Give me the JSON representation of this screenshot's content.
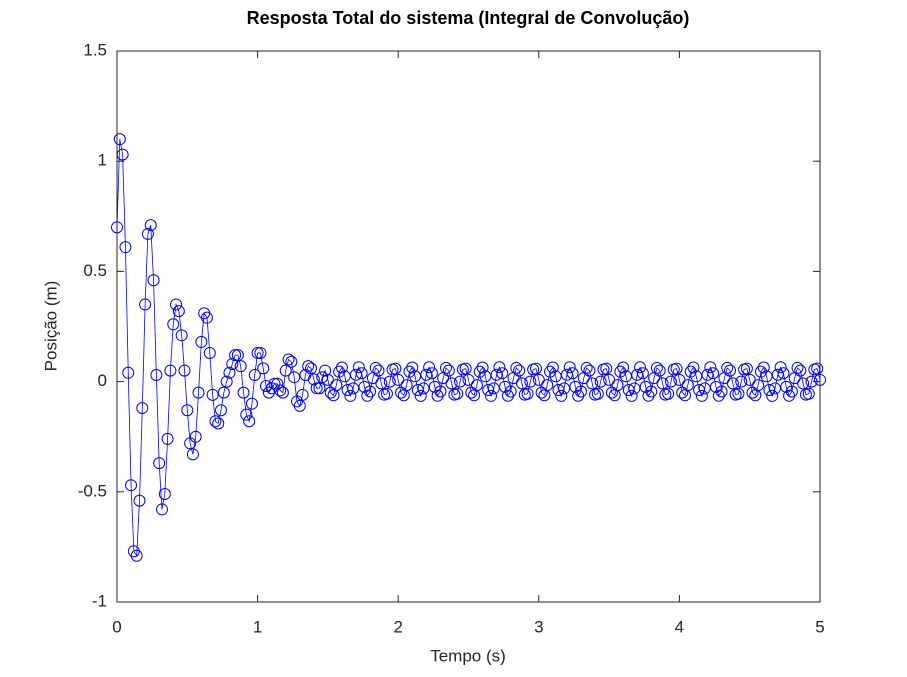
{
  "chart_data": {
    "type": "line",
    "title": "Resposta Total do sistema (Integral de Convolução)",
    "xlabel": "Tempo (s)",
    "ylabel": "Posição (m)",
    "xlim": [
      0,
      5
    ],
    "xticks": [
      0,
      1,
      2,
      3,
      4,
      5
    ],
    "ylim": [
      -1,
      1.5
    ],
    "yticks": [
      -1,
      -0.5,
      0,
      0.5,
      1,
      1.5
    ],
    "grid": false,
    "marker": "circle",
    "x": [
      0,
      0.02,
      0.04,
      0.06,
      0.08,
      0.1,
      0.12,
      0.14,
      0.16,
      0.18,
      0.2,
      0.22,
      0.24,
      0.26,
      0.28,
      0.3,
      0.32,
      0.34,
      0.36,
      0.38,
      0.4,
      0.42,
      0.44,
      0.46,
      0.48,
      0.5,
      0.52,
      0.54,
      0.56,
      0.58,
      0.6,
      0.62,
      0.64,
      0.66,
      0.68,
      0.7,
      0.72,
      0.74,
      0.76,
      0.78,
      0.8,
      0.82,
      0.84,
      0.86,
      0.88,
      0.9,
      0.92,
      0.94,
      0.96,
      0.98,
      1,
      1.02,
      1.04,
      1.06,
      1.08,
      1.1,
      1.12,
      1.14,
      1.16,
      1.18,
      1.2,
      1.22,
      1.24,
      1.26,
      1.28,
      1.3,
      1.32,
      1.34,
      1.36,
      1.38,
      1.4,
      1.42,
      1.44,
      1.46,
      1.48,
      1.5,
      1.52,
      1.54,
      1.56,
      1.58,
      1.6,
      1.62,
      1.64,
      1.66,
      1.68,
      1.7,
      1.72,
      1.74,
      1.76,
      1.78,
      1.8,
      1.82,
      1.84,
      1.86,
      1.88,
      1.9,
      1.92,
      1.94,
      1.96,
      1.98,
      2,
      2.02,
      2.04,
      2.06,
      2.08,
      2.1,
      2.12,
      2.14,
      2.16,
      2.18,
      2.2,
      2.22,
      2.24,
      2.26,
      2.28,
      2.3,
      2.32,
      2.34,
      2.36,
      2.38,
      2.4,
      2.42,
      2.44,
      2.46,
      2.48,
      2.5,
      2.52,
      2.54,
      2.56,
      2.58,
      2.6,
      2.62,
      2.64,
      2.66,
      2.68,
      2.7,
      2.72,
      2.74,
      2.76,
      2.78,
      2.8,
      2.82,
      2.84,
      2.86,
      2.88,
      2.9,
      2.92,
      2.94,
      2.96,
      2.98,
      3,
      3.02,
      3.04,
      3.06,
      3.08,
      3.1,
      3.12,
      3.14,
      3.16,
      3.18,
      3.2,
      3.22,
      3.24,
      3.26,
      3.28,
      3.3,
      3.32,
      3.34,
      3.36,
      3.38,
      3.4,
      3.42,
      3.44,
      3.46,
      3.48,
      3.5,
      3.52,
      3.54,
      3.56,
      3.58,
      3.6,
      3.62,
      3.64,
      3.66,
      3.68,
      3.7,
      3.72,
      3.74,
      3.76,
      3.78,
      3.8,
      3.82,
      3.84,
      3.86,
      3.88,
      3.9,
      3.92,
      3.94,
      3.96,
      3.98,
      4,
      4.02,
      4.04,
      4.06,
      4.08,
      4.1,
      4.12,
      4.14,
      4.16,
      4.18,
      4.2,
      4.22,
      4.24,
      4.26,
      4.28,
      4.3,
      4.32,
      4.34,
      4.36,
      4.38,
      4.4,
      4.42,
      4.44,
      4.46,
      4.48,
      4.5,
      4.52,
      4.54,
      4.56,
      4.58,
      4.6,
      4.62,
      4.64,
      4.66,
      4.68,
      4.7,
      4.72,
      4.74,
      4.76,
      4.78,
      4.8,
      4.82,
      4.84,
      4.86,
      4.88,
      4.9,
      4.92,
      4.94,
      4.96,
      4.98,
      5
    ],
    "series": [
      {
        "color": "#0000ff",
        "values": [
          0.7,
          1.1,
          1.03,
          0.61,
          0.04,
          -0.47,
          -0.77,
          -0.79,
          -0.54,
          -0.12,
          0.35,
          0.67,
          0.71,
          0.46,
          0.03,
          -0.37,
          -0.58,
          -0.51,
          -0.26,
          0.05,
          0.26,
          0.35,
          0.32,
          0.21,
          0.05,
          -0.13,
          -0.28,
          -0.33,
          -0.25,
          -0.05,
          0.18,
          0.31,
          0.29,
          0.13,
          -0.06,
          -0.18,
          -0.19,
          -0.13,
          -0.05,
          0,
          0.04,
          0.08,
          0.12,
          0.12,
          0.07,
          -0.05,
          -0.15,
          -0.18,
          -0.1,
          0.03,
          0.13,
          0.13,
          0.06,
          -0.02,
          -0.05,
          -0.03,
          -0.01,
          -0.01,
          -0.04,
          -0.05,
          0.05,
          0.1,
          0.09,
          0.02,
          -0.09,
          -0.11,
          -0.06,
          0.03,
          0.07,
          0.06,
          0.01,
          -0.03,
          -0.03,
          0.02,
          0.05,
          0.008,
          -0.05,
          -0.062,
          -0.016,
          0.045,
          0.064,
          0.024,
          -0.038,
          -0.065,
          -0.031,
          0.031,
          0.065,
          0.038,
          -0.024,
          -0.064,
          -0.045,
          0.016,
          0.062,
          0.05,
          -0.008,
          -0.059,
          -0.055,
          0,
          0.055,
          0.059,
          0.008,
          -0.05,
          -0.062,
          -0.016,
          0.045,
          0.064,
          0.024,
          -0.038,
          -0.065,
          -0.031,
          0.031,
          0.065,
          0.038,
          -0.024,
          -0.064,
          -0.045,
          0.016,
          0.062,
          0.05,
          -0.008,
          -0.059,
          -0.055,
          0,
          0.055,
          0.059,
          0.008,
          -0.05,
          -0.062,
          -0.016,
          0.045,
          0.064,
          0.024,
          -0.038,
          -0.065,
          -0.031,
          0.031,
          0.065,
          0.038,
          -0.024,
          -0.064,
          -0.045,
          0.016,
          0.062,
          0.05,
          -0.008,
          -0.059,
          -0.055,
          0,
          0.055,
          0.059,
          0.008,
          -0.05,
          -0.062,
          -0.016,
          0.045,
          0.064,
          0.024,
          -0.038,
          -0.065,
          -0.031,
          0.031,
          0.065,
          0.038,
          -0.024,
          -0.064,
          -0.045,
          0.016,
          0.062,
          0.05,
          -0.008,
          -0.059,
          -0.055,
          0,
          0.055,
          0.059,
          0.008,
          -0.05,
          -0.062,
          -0.016,
          0.045,
          0.064,
          0.024,
          -0.038,
          -0.065,
          -0.031,
          0.031,
          0.065,
          0.038,
          -0.024,
          -0.064,
          -0.045,
          0.016,
          0.062,
          0.05,
          -0.008,
          -0.059,
          -0.055,
          0,
          0.055,
          0.059,
          0.008,
          -0.05,
          -0.062,
          -0.016,
          0.045,
          0.064,
          0.024,
          -0.038,
          -0.065,
          -0.031,
          0.031,
          0.065,
          0.038,
          -0.024,
          -0.064,
          -0.045,
          0.016,
          0.062,
          0.05,
          -0.008,
          -0.059,
          -0.055,
          0,
          0.055,
          0.059,
          0.008,
          -0.05,
          -0.062,
          -0.016,
          0.045,
          0.064,
          0.024,
          -0.038,
          -0.065,
          -0.031,
          0.031,
          0.065,
          0.038,
          -0.024,
          -0.064,
          -0.045,
          0.016,
          0.062,
          0.05,
          -0.008,
          -0.059,
          -0.055,
          0,
          0.055,
          0.059,
          0.008
        ]
      }
    ]
  }
}
